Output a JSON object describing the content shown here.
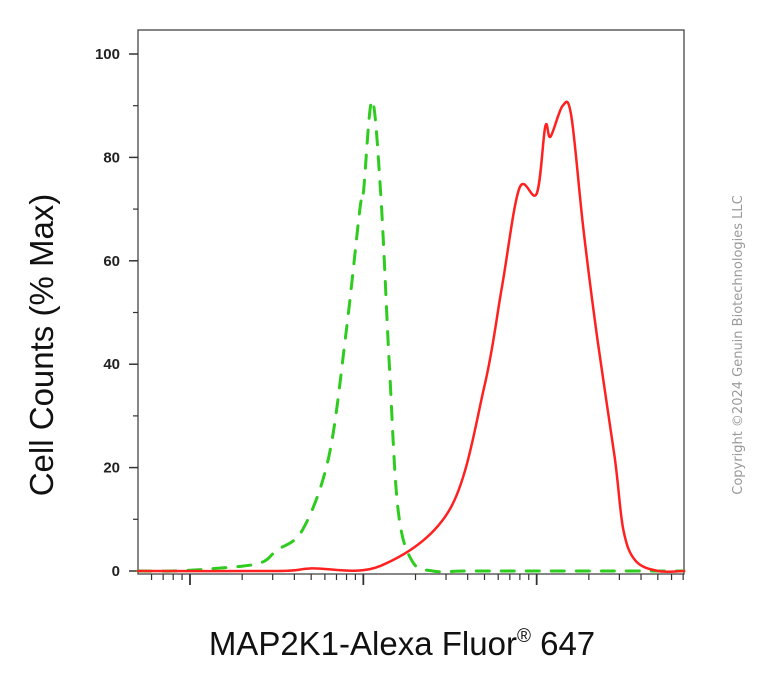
{
  "chart_data": {
    "type": "line",
    "xlabel": "MAP2K1-Alexa Fluor",
    "xlabel_mark": "®",
    "xlabel_suffix": " 647",
    "ylabel": "Cell Counts (% Max)",
    "ylim": [
      0,
      100
    ],
    "xlim": [
      -1.3,
      1.85
    ],
    "x_scale": "log",
    "y_ticks": [
      "0",
      "20",
      "40",
      "60",
      "80",
      "100"
    ],
    "y_tick_values": [
      0,
      20,
      40,
      60,
      80,
      100
    ],
    "x_major_ticks": [
      -1,
      0,
      1
    ],
    "grid": false,
    "series": [
      {
        "style": "dashed",
        "color": "#2ecc1f",
        "x": [
          -1.3,
          -1.1,
          -0.85,
          -0.6,
          -0.5,
          -0.35,
          -0.2,
          -0.1,
          -0.02,
          0.0,
          0.05,
          0.1,
          0.15,
          0.2,
          0.28,
          0.4,
          0.6,
          1.0,
          1.5,
          1.85
        ],
        "y": [
          0,
          0,
          0.5,
          1.5,
          4,
          8,
          22,
          46,
          70,
          73,
          91,
          73,
          40,
          12,
          2,
          0,
          0,
          0,
          0,
          0
        ]
      },
      {
        "style": "solid",
        "color": "#ff2020",
        "x": [
          -1.3,
          -0.5,
          -0.3,
          0.1,
          0.5,
          0.7,
          0.8,
          0.9,
          1.0,
          1.05,
          1.08,
          1.15,
          1.2,
          1.27,
          1.35,
          1.45,
          1.5,
          1.57,
          1.7,
          1.85
        ],
        "y": [
          0,
          0,
          0.5,
          1,
          12,
          36,
          55,
          74,
          73,
          86,
          84,
          90,
          88,
          66,
          45,
          22,
          8,
          2,
          0,
          0
        ]
      }
    ]
  },
  "copyright": "Copyright ©2024 Genuin Biotechnologies LLC"
}
